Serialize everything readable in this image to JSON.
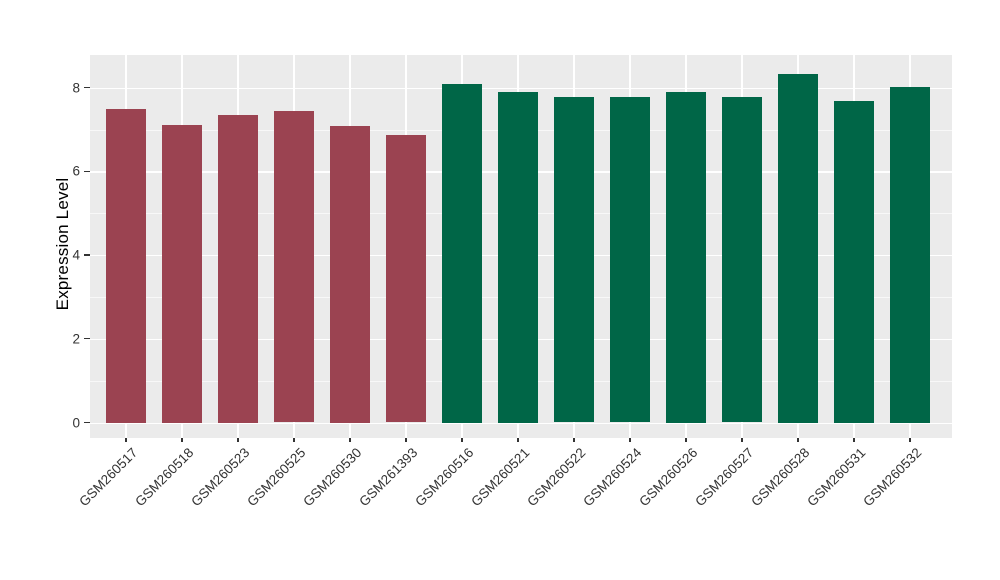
{
  "figure": {
    "background_color": "#ffffff",
    "panel_background_color": "#ebebeb",
    "grid_color": "#ffffff",
    "tick_color": "#333333",
    "tick_label_color": "#333333",
    "axis_title_color": "#000000"
  },
  "chart_data": {
    "type": "bar",
    "title": "",
    "xlabel": "",
    "ylabel": "Expression Level",
    "categories": [
      "GSM260517",
      "GSM260518",
      "GSM260523",
      "GSM260525",
      "GSM260530",
      "GSM261393",
      "GSM260516",
      "GSM260521",
      "GSM260522",
      "GSM260524",
      "GSM260526",
      "GSM260527",
      "GSM260528",
      "GSM260531",
      "GSM260532"
    ],
    "values": [
      7.48,
      7.11,
      7.34,
      7.45,
      7.08,
      6.88,
      8.09,
      7.9,
      7.78,
      7.78,
      7.9,
      7.78,
      8.33,
      7.69,
      8.01
    ],
    "bar_groups": [
      "A",
      "A",
      "A",
      "A",
      "A",
      "A",
      "B",
      "B",
      "B",
      "B",
      "B",
      "B",
      "B",
      "B",
      "B"
    ],
    "group_colors": {
      "A": "#9b4351",
      "B": "#006647"
    },
    "y_major_ticks": [
      0,
      2,
      4,
      6,
      8
    ],
    "y_minor_ticks": [
      1,
      3,
      5,
      7
    ],
    "ylim": [
      -0.37,
      8.78
    ],
    "grid": "on",
    "legend": "none"
  }
}
